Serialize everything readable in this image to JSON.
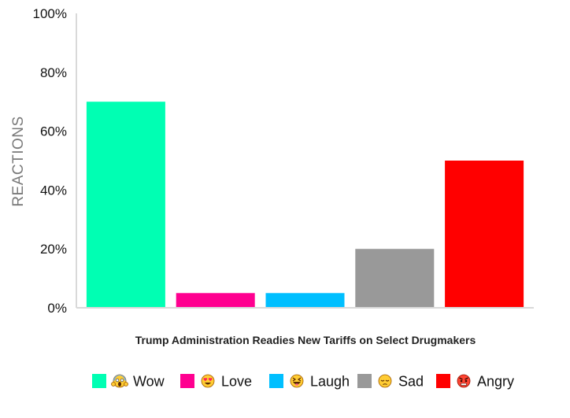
{
  "chart_data": {
    "type": "bar",
    "categories": [
      "Wow",
      "Love",
      "Laugh",
      "Sad",
      "Angry"
    ],
    "values": [
      70,
      5,
      5,
      20,
      50
    ],
    "colors": [
      "#00ffb3",
      "#ff0090",
      "#00bfff",
      "#999999",
      "#ff0000"
    ],
    "emoji_icons": [
      "face-screaming-in-fear-icon",
      "smiling-face-with-heart-eyes-icon",
      "grinning-squinting-face-icon",
      "pensive-face-icon",
      "angry-face-icon"
    ],
    "title": "",
    "xlabel": "Trump Administration Readies New Tariffs on Select Drugmakers",
    "ylabel": "REACTIONS",
    "ylim": [
      0,
      100
    ],
    "yticks": [
      0,
      20,
      40,
      60,
      80,
      100
    ],
    "ytick_labels": [
      "0%",
      "20%",
      "40%",
      "60%",
      "80%",
      "100%"
    ],
    "grid": false,
    "legend_position": "bottom"
  }
}
